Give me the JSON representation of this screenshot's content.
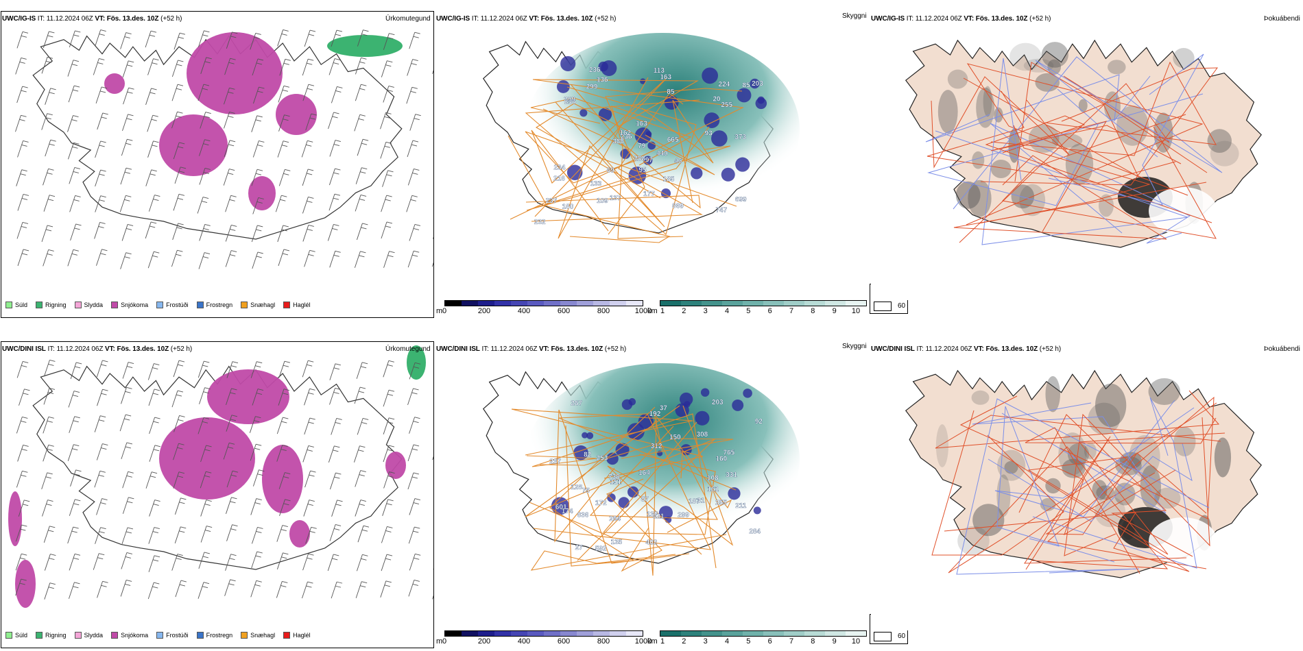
{
  "rows": [
    {
      "model": "UWC/IG-IS",
      "it_label": "IT:",
      "it_value": "11.12.2024 06Z",
      "vt_label": "VT:",
      "vt_value": "Fös. 13.des. 10Z",
      "lead": "(+52 h)",
      "products": [
        "Úrkomutegund",
        "Skyggni",
        "Þokuábendi"
      ],
      "cloud_labels": [
        "299",
        "373",
        "236",
        "747",
        "216",
        "256",
        "665",
        "109",
        "69",
        "85",
        "20",
        "136",
        "299",
        "203",
        "137",
        "163",
        "180",
        "255",
        "113",
        "869",
        "234",
        "162",
        "93",
        "163",
        "288",
        "699",
        "133",
        "237",
        "388",
        "224",
        "440",
        "95",
        "177",
        "236",
        "185",
        "85",
        "97",
        "232",
        "79",
        "46"
      ]
    },
    {
      "model": "UWC/DINI ISL",
      "it_label": "IT:",
      "it_value": "11.12.2024 06Z",
      "vt_label": "VT:",
      "vt_value": "Fös. 13.des. 10Z",
      "lead": "(+52 h)",
      "products": [
        "Úrkomutegund",
        "Skyggni",
        "Þokuábendi"
      ],
      "cloud_labels": [
        "592",
        "187",
        "738",
        "284",
        "211",
        "308",
        "128",
        "92",
        "108",
        "601",
        "253",
        "255",
        "164",
        "174",
        "267",
        "150",
        "331",
        "27",
        "765",
        "203",
        "836",
        "192",
        "172",
        "321",
        "284",
        "299",
        "312",
        "402",
        "75",
        "137",
        "87",
        "151",
        "160",
        "82",
        "135",
        "161",
        "237",
        "37",
        "31"
      ]
    }
  ],
  "precip_legend": [
    {
      "label": "Súld",
      "color": "#90ee90"
    },
    {
      "label": "Rigning",
      "color": "#3cb371"
    },
    {
      "label": "Slydda",
      "color": "#f4a6d7"
    },
    {
      "label": "Snjókoma",
      "color": "#c04aa8"
    },
    {
      "label": "Frostúði",
      "color": "#87b7ee"
    },
    {
      "label": "Frostregn",
      "color": "#3a74c8"
    },
    {
      "label": "Snæhagl",
      "color": "#f0a020"
    },
    {
      "label": "Haglél",
      "color": "#e81c1c"
    }
  ],
  "cloudbase_scale": {
    "unit": "m",
    "ticks": [
      "0",
      "200",
      "400",
      "600",
      "800",
      "1000"
    ],
    "colors": [
      "#000000",
      "#101060",
      "#1e1e8c",
      "#3232a8",
      "#4646b4",
      "#5a5ac0",
      "#7070c8",
      "#8888d0",
      "#a0a0da",
      "#b8b8e4",
      "#d0d0ee",
      "#e8e8f8"
    ]
  },
  "visibility_scale": {
    "unit": "km",
    "ticks": [
      "1",
      "2",
      "3",
      "4",
      "5",
      "6",
      "7",
      "8",
      "9",
      "10"
    ],
    "colors": [
      "#1a706a",
      "#2e827c",
      "#44938c",
      "#5aa39c",
      "#70b2ab",
      "#88c0ba",
      "#a0cec8",
      "#b8dcd6",
      "#d0e8e4",
      "#e8f4f2"
    ]
  },
  "cloud_key": {
    "top": "0",
    "bottom": "60"
  }
}
